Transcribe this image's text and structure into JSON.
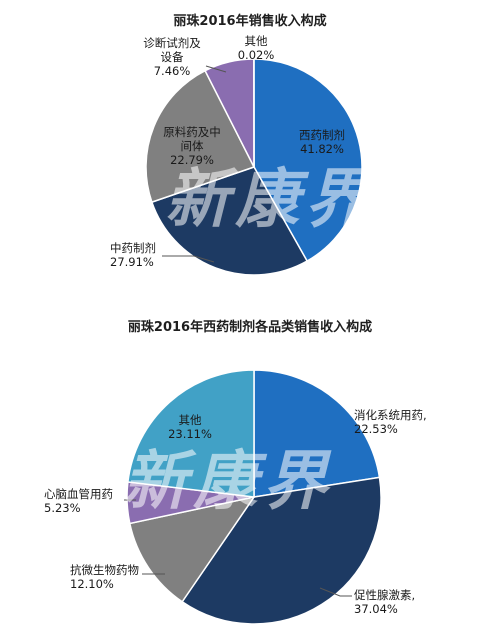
{
  "watermark": "新康界",
  "chart_data": [
    {
      "type": "pie",
      "title": "丽珠2016年销售收入构成",
      "slices": [
        {
          "label": [
            "西药制剂"
          ],
          "value": 41.82,
          "value_label": "41.82%",
          "color": "#1f6fc1"
        },
        {
          "label": [
            "中药制剂"
          ],
          "value": 27.91,
          "value_label": "27.91%",
          "color": "#1d3a63"
        },
        {
          "label": [
            "原料药及中",
            "间体"
          ],
          "value": 22.79,
          "value_label": "22.79%",
          "color": "#808080"
        },
        {
          "label": [
            "诊断试剂及",
            "设备"
          ],
          "value": 7.46,
          "value_label": "7.46%",
          "color": "#8a6db0"
        },
        {
          "label": [
            "其他"
          ],
          "value": 0.02,
          "value_label": "0.02%",
          "color": "#4f81bd"
        }
      ]
    },
    {
      "type": "pie",
      "title": "丽珠2016年西药制剂各品类销售收入构成",
      "slices": [
        {
          "label": [
            "消化系统用药,"
          ],
          "value": 22.53,
          "value_label": "22.53%",
          "color": "#1f6fc1"
        },
        {
          "label": [
            "促性腺激素,"
          ],
          "value": 37.04,
          "value_label": "37.04%",
          "color": "#1d3a63"
        },
        {
          "label": [
            "抗微生物药物"
          ],
          "value": 12.1,
          "value_label": "12.10%",
          "color": "#808080"
        },
        {
          "label": [
            "心脑血管用药"
          ],
          "value": 5.23,
          "value_label": "5.23%",
          "color": "#8a6db0"
        },
        {
          "label": [
            "其他"
          ],
          "value": 23.11,
          "value_label": "23.11%",
          "color": "#41a1c6"
        }
      ]
    }
  ]
}
